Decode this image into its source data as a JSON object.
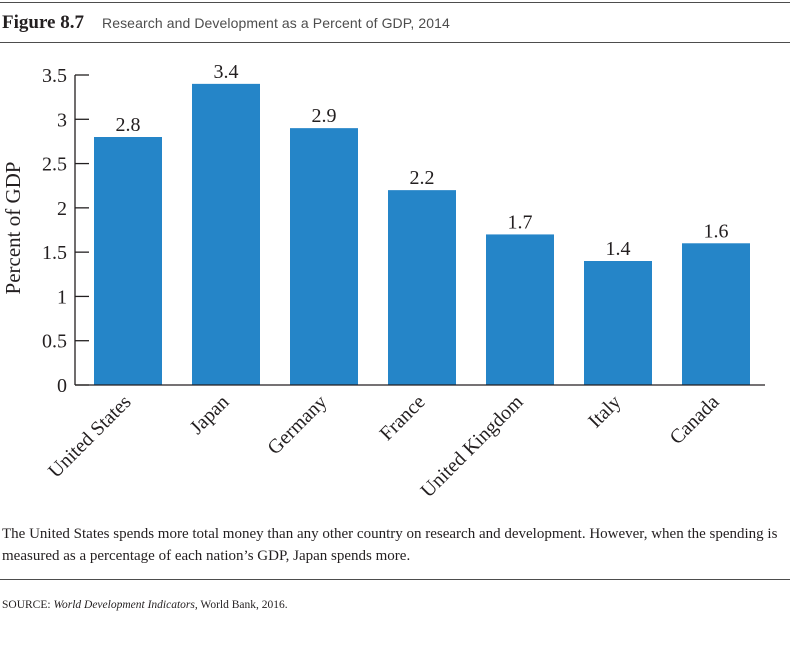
{
  "figure": {
    "label": "Figure 8.7",
    "title": "Research and Development as a Percent of GDP, 2014"
  },
  "chart_data": {
    "type": "bar",
    "categories": [
      "United States",
      "Japan",
      "Germany",
      "France",
      "United Kingdom",
      "Italy",
      "Canada"
    ],
    "values": [
      2.8,
      3.4,
      2.9,
      2.2,
      1.7,
      1.4,
      1.6
    ],
    "value_labels": [
      "2.8",
      "3.4",
      "2.9",
      "2.2",
      "1.7",
      "1.4",
      "1.6"
    ],
    "ylabel": "Percent of GDP",
    "ylim": [
      0,
      3.5
    ],
    "yticks": [
      0,
      0.5,
      1,
      1.5,
      2,
      2.5,
      3,
      3.5
    ],
    "ytick_labels": [
      "0",
      "0.5",
      "1",
      "1.5",
      "2",
      "2.5",
      "3",
      "3.5"
    ],
    "grid": false,
    "legend": "none",
    "bar_color": "#2585c8"
  },
  "caption": "The United States spends more total money than any other country on research and development. However, when the spending is measured as a percentage of each nation’s GDP, Japan spends more.",
  "source": {
    "prefix": "SOURCE: ",
    "publication": "World Development Indicators,",
    "suffix": " World Bank, 2016."
  }
}
